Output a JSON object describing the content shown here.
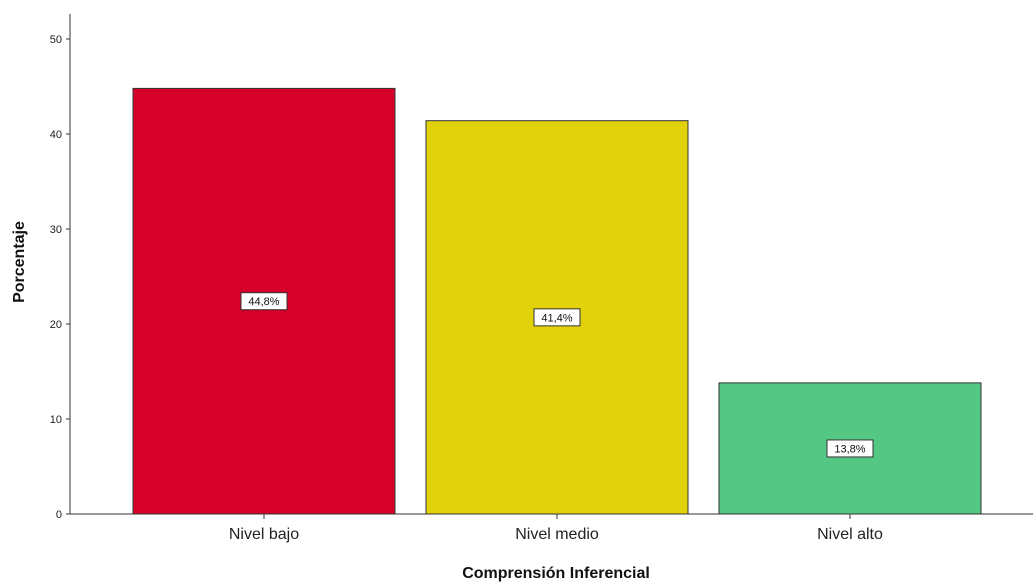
{
  "chart_data": {
    "type": "bar",
    "title": "",
    "xlabel": "Comprensión Inferencial",
    "ylabel": "Porcentaje",
    "ylim": [
      0,
      50
    ],
    "yticks": [
      "0",
      "10",
      "20",
      "30",
      "40",
      "50"
    ],
    "categories": [
      "Nivel bajo",
      "Nivel medio",
      "Nivel alto"
    ],
    "values": [
      44.8,
      41.4,
      13.8
    ],
    "data_labels": [
      "44,8%",
      "41,4%",
      "13,8%"
    ],
    "colors": [
      "#d6002a",
      "#e2d20b",
      "#55c785"
    ],
    "grid": false,
    "legend": "none"
  }
}
